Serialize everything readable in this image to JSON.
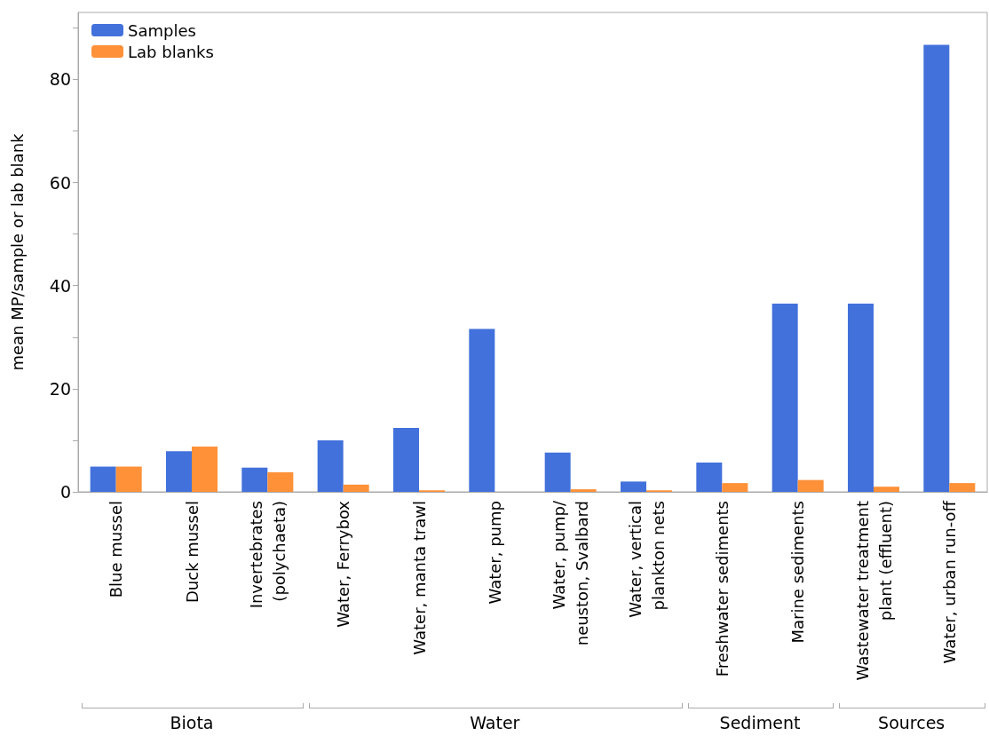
{
  "chart_data": {
    "type": "bar",
    "ylabel": "mean MP/sample or lab blank",
    "categories": [
      "Blue mussel",
      "Duck mussel",
      "Invertebrates\n(polychaeta)",
      "Water, Ferrybox",
      "Water, manta trawl",
      "Water, pump",
      "Water, pump/\nneuston, Svalbard",
      "Water, vertical\nplankton nets",
      "Freshwater sediments",
      "Marine sediments",
      "Wastewater treatment\nplant (effluent)",
      "Water, urban run-off"
    ],
    "series": [
      {
        "name": "Samples",
        "color": "#4271db",
        "values": [
          4.9,
          7.9,
          4.7,
          10.0,
          12.4,
          31.6,
          7.6,
          2.0,
          5.7,
          36.5,
          36.5,
          86.7
        ]
      },
      {
        "name": "Lab blanks",
        "color": "#ff9138",
        "values": [
          4.9,
          8.8,
          3.8,
          1.4,
          0.3,
          null,
          0.5,
          0.3,
          1.7,
          2.3,
          1.0,
          1.7
        ]
      }
    ],
    "ylim": [
      0,
      93
    ],
    "yticks": [
      0,
      {
        "value": 10,
        "label": null
      },
      20,
      {
        "value": 30,
        "label": null
      },
      40,
      {
        "value": 50,
        "label": null
      },
      60,
      {
        "value": 70,
        "label": null
      },
      80,
      {
        "value": 90,
        "label": null
      }
    ],
    "annotations": [
      "Biota",
      "Water",
      "Sediment",
      "Sources"
    ],
    "legend": "top left",
    "grid": false
  }
}
